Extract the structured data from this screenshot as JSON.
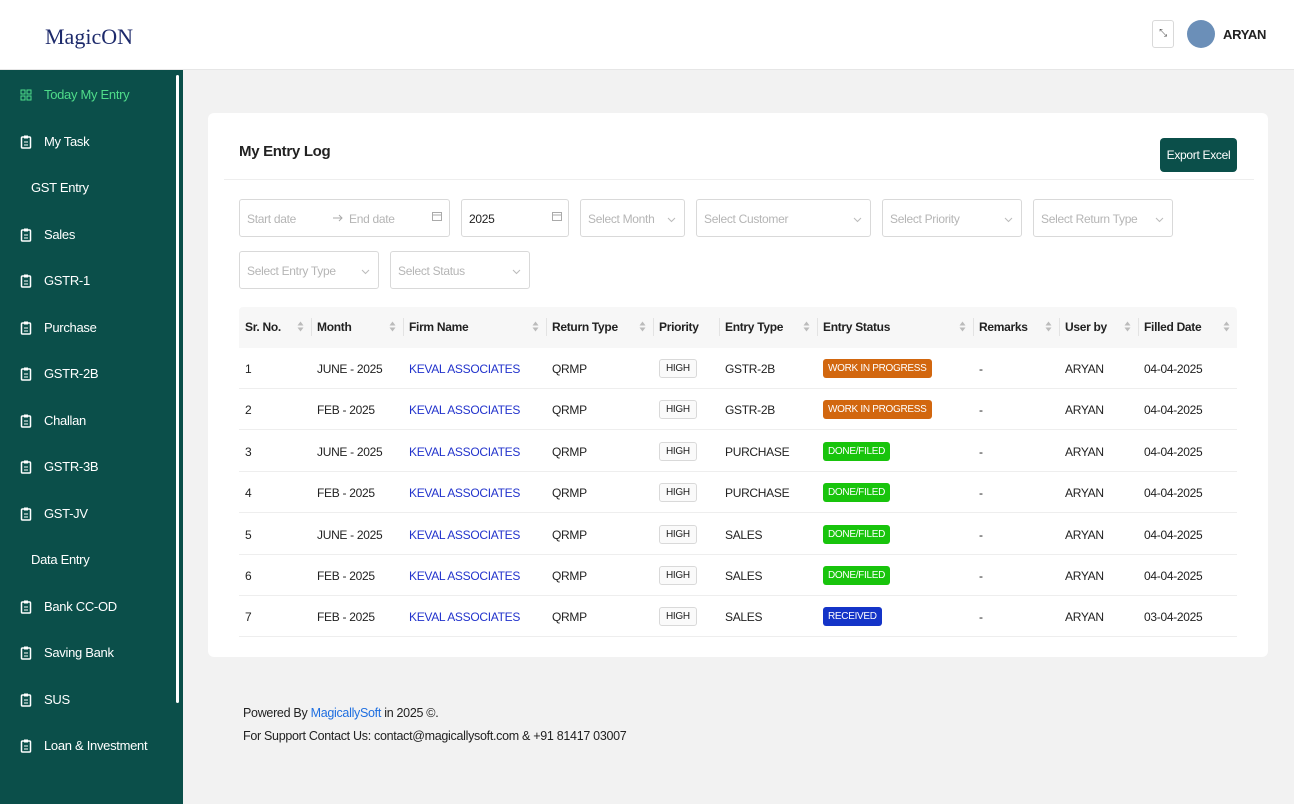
{
  "header": {
    "logo": "MagicON",
    "user": "ARYAN"
  },
  "sidebar": [
    {
      "label": "Today My Entry",
      "kind": "active"
    },
    {
      "label": "My Task",
      "kind": "link"
    },
    {
      "label": "GST Entry",
      "kind": "section"
    },
    {
      "label": "Sales",
      "kind": "link"
    },
    {
      "label": "GSTR-1",
      "kind": "link"
    },
    {
      "label": "Purchase",
      "kind": "link"
    },
    {
      "label": "GSTR-2B",
      "kind": "link"
    },
    {
      "label": "Challan",
      "kind": "link"
    },
    {
      "label": "GSTR-3B",
      "kind": "link"
    },
    {
      "label": "GST-JV",
      "kind": "link"
    },
    {
      "label": "Data Entry",
      "kind": "section"
    },
    {
      "label": "Bank CC-OD",
      "kind": "link"
    },
    {
      "label": "Saving Bank",
      "kind": "link"
    },
    {
      "label": "SUS",
      "kind": "link"
    },
    {
      "label": "Loan & Investment",
      "kind": "link"
    }
  ],
  "card": {
    "title": "My Entry Log",
    "export_button": "Export Excel"
  },
  "filters": {
    "start_date": "Start date",
    "end_date": "End date",
    "year": "2025",
    "selects": [
      "Select Month",
      "Select Customer",
      "Select Priority",
      "Select Return Type",
      "Select Entry Type",
      "Select Status"
    ]
  },
  "table": {
    "columns": [
      {
        "label": "Sr. No.",
        "sortable": true
      },
      {
        "label": "Month",
        "sortable": true
      },
      {
        "label": "Firm Name",
        "sortable": true
      },
      {
        "label": "Return Type",
        "sortable": true
      },
      {
        "label": "Priority",
        "sortable": false
      },
      {
        "label": "Entry Type",
        "sortable": true
      },
      {
        "label": "Entry Status",
        "sortable": true
      },
      {
        "label": "Remarks",
        "sortable": true
      },
      {
        "label": "User by",
        "sortable": true
      },
      {
        "label": "Filled Date",
        "sortable": true
      }
    ],
    "rows": [
      {
        "cells": [
          "1",
          "JUNE - 2025",
          "KEVAL ASSOCIATES",
          "QRMP",
          "HIGH",
          "GSTR-2B",
          "WORK IN PROGRESS",
          "-",
          "ARYAN",
          "04-04-2025"
        ],
        "status_color": "#d2670f"
      },
      {
        "cells": [
          "2",
          "FEB - 2025",
          "KEVAL ASSOCIATES",
          "QRMP",
          "HIGH",
          "GSTR-2B",
          "WORK IN PROGRESS",
          "-",
          "ARYAN",
          "04-04-2025"
        ],
        "status_color": "#d2670f"
      },
      {
        "cells": [
          "3",
          "JUNE - 2025",
          "KEVAL ASSOCIATES",
          "QRMP",
          "HIGH",
          "PURCHASE",
          "DONE/FILED",
          "-",
          "ARYAN",
          "04-04-2025"
        ],
        "status_color": "#18c40c"
      },
      {
        "cells": [
          "4",
          "FEB - 2025",
          "KEVAL ASSOCIATES",
          "QRMP",
          "HIGH",
          "PURCHASE",
          "DONE/FILED",
          "-",
          "ARYAN",
          "04-04-2025"
        ],
        "status_color": "#18c40c"
      },
      {
        "cells": [
          "5",
          "JUNE - 2025",
          "KEVAL ASSOCIATES",
          "QRMP",
          "HIGH",
          "SALES",
          "DONE/FILED",
          "-",
          "ARYAN",
          "04-04-2025"
        ],
        "status_color": "#18c40c"
      },
      {
        "cells": [
          "6",
          "FEB - 2025",
          "KEVAL ASSOCIATES",
          "QRMP",
          "HIGH",
          "SALES",
          "DONE/FILED",
          "-",
          "ARYAN",
          "04-04-2025"
        ],
        "status_color": "#18c40c"
      },
      {
        "cells": [
          "7",
          "FEB - 2025",
          "KEVAL ASSOCIATES",
          "QRMP",
          "HIGH",
          "SALES",
          "RECEIVED",
          "-",
          "ARYAN",
          "03-04-2025"
        ],
        "status_color": "#1434c8"
      }
    ]
  },
  "footer": {
    "powered_prefix": "Powered By",
    "powered_link": "MagicallySoft",
    "powered_suffix": "in 2025 ©.",
    "support": "For Support Contact Us: contact@magicallysoft.com & +91 81417 03007"
  }
}
